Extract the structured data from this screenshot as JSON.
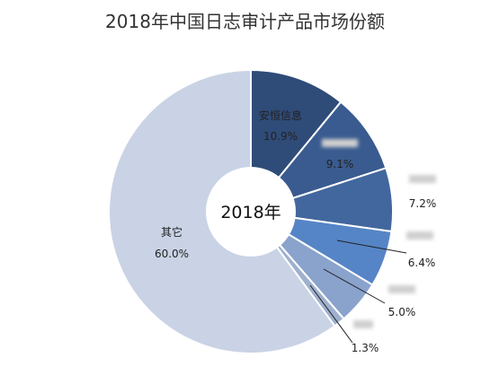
{
  "chart_data": {
    "type": "pie",
    "title": "2018年中国日志审计产品市场份额",
    "center_label": "2018年",
    "slices": [
      {
        "label": "安恒信息",
        "value": 10.9,
        "value_label": "10.9%",
        "color": "#2f4b78"
      },
      {
        "label": "",
        "value": 9.1,
        "value_label": "9.1%",
        "color": "#3a5b8f"
      },
      {
        "label": "",
        "value": 7.2,
        "value_label": "7.2%",
        "color": "#42679e"
      },
      {
        "label": "",
        "value": 6.4,
        "value_label": "6.4%",
        "color": "#5585c6"
      },
      {
        "label": "",
        "value": 5.0,
        "value_label": "5.0%",
        "color": "#8aa3cc"
      },
      {
        "label": "",
        "value": 1.3,
        "value_label": "1.3%",
        "color": "#9fb0cf"
      },
      {
        "label": "其它",
        "value": 60.0,
        "value_label": "60.0%",
        "color": "#c9d3e5"
      }
    ]
  }
}
